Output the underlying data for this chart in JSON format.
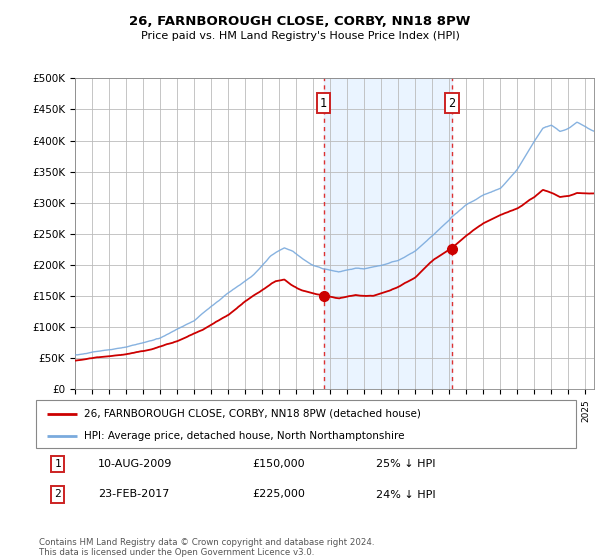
{
  "title": "26, FARNBOROUGH CLOSE, CORBY, NN18 8PW",
  "subtitle": "Price paid vs. HM Land Registry's House Price Index (HPI)",
  "ylabel_ticks": [
    "£0",
    "£50K",
    "£100K",
    "£150K",
    "£200K",
    "£250K",
    "£300K",
    "£350K",
    "£400K",
    "£450K",
    "£500K"
  ],
  "ytick_values": [
    0,
    50000,
    100000,
    150000,
    200000,
    250000,
    300000,
    350000,
    400000,
    450000,
    500000
  ],
  "ylim": [
    0,
    500000
  ],
  "xlim_start": 1995.0,
  "xlim_end": 2025.5,
  "hpi_color": "#7aaadd",
  "price_color": "#cc0000",
  "marker1_date": 2009.61,
  "marker1_price": 150000,
  "marker2_date": 2017.15,
  "marker2_price": 225000,
  "vline1_x": 2009.61,
  "vline2_x": 2017.15,
  "legend_line1": "26, FARNBOROUGH CLOSE, CORBY, NN18 8PW (detached house)",
  "legend_line2": "HPI: Average price, detached house, North Northamptonshire",
  "table_row1_num": "1",
  "table_row1_date": "10-AUG-2009",
  "table_row1_price": "£150,000",
  "table_row1_hpi": "25% ↓ HPI",
  "table_row2_num": "2",
  "table_row2_date": "23-FEB-2017",
  "table_row2_price": "£225,000",
  "table_row2_hpi": "24% ↓ HPI",
  "footnote": "Contains HM Land Registry data © Crown copyright and database right 2024.\nThis data is licensed under the Open Government Licence v3.0.",
  "background_color": "#ffffff",
  "grid_color": "#bbbbbb",
  "shaded_region_color": "#ddeeff"
}
